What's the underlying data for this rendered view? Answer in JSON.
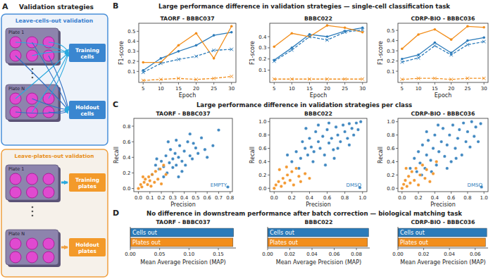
{
  "diagram": {
    "label": "A",
    "title": "Validation strategies",
    "cells_out": {
      "title": "Leave-cells-out validation",
      "plate_1": "Plate 1",
      "plate_n": "Plate N",
      "training": "Training cells",
      "holdout": "Holdout cells"
    },
    "plates_out": {
      "title": "Leave-plates-out validation",
      "plate_1": "Plate 1",
      "plate_n": "Plate N",
      "training": "Training plates",
      "holdout": "Holdout plates"
    }
  },
  "sections": [
    {
      "label": "B",
      "title": "Large performance difference in validation strategies — single-cell classification task"
    },
    {
      "label": "C",
      "title": "Large performance difference in validation strategies per class"
    },
    {
      "label": "D",
      "title": "No difference in downstream performance after batch correction — biological matching task"
    }
  ],
  "chart_data": [
    {
      "type": "line",
      "title": "TAORF - BBBC037",
      "x_label": "Epoch",
      "y_label": "F1-score",
      "x": [
        5,
        10,
        15,
        20,
        25,
        30
      ],
      "xlim": [
        3.75,
        31.25
      ],
      "xticks": [
        5,
        10,
        15,
        20,
        25,
        30
      ],
      "ylim": [
        -0.01,
        0.58
      ],
      "yticks": [
        0.1,
        0.2,
        0.3,
        0.4,
        0.5
      ],
      "series": [
        {
          "color": "#2b7bba",
          "line_style": "solid",
          "marker": "circle",
          "values": [
            0.11,
            0.23,
            0.3,
            0.36,
            0.46,
            0.49
          ]
        },
        {
          "color": "#f28e1c",
          "line_style": "solid",
          "marker": "circle",
          "values": [
            0.19,
            0.19,
            0.36,
            0.48,
            0.23,
            0.55
          ]
        },
        {
          "color": "#2b7bba",
          "line_style": "dashed",
          "marker": "x",
          "values": [
            0.09,
            0.18,
            0.22,
            0.25,
            0.31,
            0.32
          ]
        },
        {
          "color": "#f28e1c",
          "line_style": "dashed",
          "marker": "x",
          "values": [
            0.01,
            0.02,
            0.03,
            0.02,
            0.03,
            0.05
          ]
        }
      ]
    },
    {
      "type": "line",
      "title": "BBBC022",
      "x_label": "Epoch",
      "y_label": "F1-score",
      "x": [
        5,
        10,
        15,
        20,
        25,
        30
      ],
      "xlim": [
        3.75,
        31.25
      ],
      "xticks": [
        5,
        10,
        15,
        20,
        25,
        30
      ],
      "ylim": [
        -0.01,
        0.52
      ],
      "yticks": [
        0.1,
        0.2,
        0.3,
        0.4
      ],
      "series": [
        {
          "color": "#2b7bba",
          "line_style": "solid",
          "marker": "circle",
          "values": [
            0.19,
            0.3,
            0.42,
            0.4,
            0.45,
            0.48
          ]
        },
        {
          "color": "#f28e1c",
          "line_style": "solid",
          "marker": "circle",
          "values": [
            0.31,
            0.43,
            0.4,
            0.5,
            0.48,
            0.44
          ]
        },
        {
          "color": "#2b7bba",
          "line_style": "dashed",
          "marker": "x",
          "values": [
            0.18,
            0.28,
            0.4,
            0.37,
            0.44,
            0.46
          ]
        },
        {
          "color": "#f28e1c",
          "line_style": "dashed",
          "marker": "x",
          "values": [
            0.02,
            0.02,
            0.02,
            0.02,
            0.02,
            0.02
          ]
        }
      ]
    },
    {
      "type": "line",
      "title": "CDRP-BIO - BBBC036",
      "x_label": "Epoch",
      "y_label": "F1-score",
      "x": [
        5,
        10,
        15,
        20,
        25,
        30
      ],
      "xlim": [
        3.75,
        31.25
      ],
      "xticks": [
        5,
        10,
        15,
        20,
        25,
        30
      ],
      "ylim": [
        -0.01,
        0.57
      ],
      "yticks": [
        0.1,
        0.2,
        0.3,
        0.4,
        0.5
      ],
      "series": [
        {
          "color": "#2b7bba",
          "line_style": "solid",
          "marker": "circle",
          "values": [
            0.22,
            0.26,
            0.38,
            0.28,
            0.4,
            0.43
          ]
        },
        {
          "color": "#f28e1c",
          "line_style": "solid",
          "marker": "circle",
          "values": [
            0.32,
            0.46,
            0.51,
            0.41,
            0.54,
            0.53
          ]
        },
        {
          "color": "#2b7bba",
          "line_style": "dashed",
          "marker": "x",
          "values": [
            0.19,
            0.23,
            0.35,
            0.26,
            0.36,
            0.39
          ]
        },
        {
          "color": "#f28e1c",
          "line_style": "dashed",
          "marker": "x",
          "values": [
            0.02,
            0.03,
            0.03,
            0.02,
            0.03,
            0.03
          ]
        }
      ]
    },
    {
      "type": "scatter",
      "title": "TAORF - BBBC037",
      "x_label": "Precision",
      "y_label": "Recall",
      "annotation": "EMPTY",
      "xlim": [
        -0.04,
        0.82
      ],
      "ylim": [
        -0.04,
        0.9
      ],
      "xticks": [
        {
          "value": 0,
          "label": "0.0"
        },
        0.1,
        0.2,
        0.3,
        0.4,
        0.5,
        0.6,
        0.7,
        0.8
      ],
      "yticks": [
        {
          "value": 0,
          "label": "0.0"
        },
        0.2,
        0.4,
        0.6,
        0.8
      ],
      "series": [
        {
          "color": "#2b7bba",
          "x": [
            0.12,
            0.15,
            0.18,
            0.2,
            0.22,
            0.24,
            0.25,
            0.27,
            0.28,
            0.3,
            0.3,
            0.32,
            0.33,
            0.35,
            0.36,
            0.38,
            0.4,
            0.41,
            0.43,
            0.45,
            0.47,
            0.5,
            0.52,
            0.55,
            0.58,
            0.6,
            0.38,
            0.26,
            0.22,
            0.45,
            0.65,
            0.7,
            0.33,
            0.48,
            0.16,
            0.35,
            0.78
          ],
          "values": [
            0.18,
            0.3,
            0.25,
            0.35,
            0.28,
            0.42,
            0.2,
            0.33,
            0.5,
            0.38,
            0.27,
            0.45,
            0.3,
            0.4,
            0.55,
            0.35,
            0.48,
            0.3,
            0.6,
            0.42,
            0.38,
            0.52,
            0.45,
            0.65,
            0.5,
            0.4,
            0.22,
            0.6,
            0.15,
            0.7,
            0.55,
            0.75,
            0.62,
            0.58,
            0.38,
            0.15,
            0.02
          ]
        },
        {
          "color": "#f28e1c",
          "x": [
            0.0,
            0.02,
            0.03,
            0.05,
            0.06,
            0.08,
            0.09,
            0.1,
            0.12,
            0.14,
            0.15,
            0.17,
            0.19,
            0.2,
            0.22,
            0.24,
            0.04,
            0.11
          ],
          "values": [
            0.0,
            0.05,
            0.02,
            0.08,
            0.12,
            0.05,
            0.15,
            0.1,
            0.18,
            0.08,
            0.22,
            0.12,
            0.25,
            0.06,
            0.3,
            0.18,
            0.15,
            0.03
          ]
        }
      ]
    },
    {
      "type": "scatter",
      "title": "BBBC022",
      "x_label": "Precision",
      "y_label": "Recall",
      "annotation": "DMSO",
      "xlim": [
        -0.05,
        1.05
      ],
      "ylim": [
        -0.05,
        1.05
      ],
      "xticks": [
        {
          "value": 0,
          "label": "0.0"
        },
        0.2,
        0.4,
        0.6,
        0.8,
        {
          "value": 1,
          "label": "1.0"
        }
      ],
      "yticks": [
        {
          "value": 0,
          "label": "0.0"
        },
        0.2,
        0.4,
        0.6,
        0.8,
        {
          "value": 1,
          "label": "1.0"
        }
      ],
      "series": [
        {
          "color": "#2b7bba",
          "x": [
            0.2,
            0.25,
            0.3,
            0.32,
            0.35,
            0.38,
            0.4,
            0.42,
            0.45,
            0.47,
            0.5,
            0.52,
            0.55,
            0.57,
            0.6,
            0.62,
            0.65,
            0.67,
            0.7,
            0.72,
            0.75,
            0.78,
            0.8,
            0.83,
            0.85,
            0.88,
            0.9,
            0.93,
            0.95,
            0.98,
            0.28,
            0.44,
            0.58,
            0.68,
            0.15,
            0.36,
            0.5,
            0.62,
            0.72,
            0.85,
            0.97
          ],
          "values": [
            0.4,
            0.55,
            0.45,
            0.7,
            0.6,
            0.5,
            0.75,
            0.62,
            0.55,
            0.85,
            0.7,
            0.6,
            0.78,
            0.5,
            0.88,
            0.68,
            0.75,
            0.58,
            0.92,
            0.8,
            0.7,
            0.95,
            0.85,
            0.75,
            0.97,
            0.9,
            0.8,
            0.98,
            0.88,
            1.0,
            0.3,
            0.4,
            0.35,
            0.45,
            0.5,
            0.9,
            0.95,
            0.98,
            0.6,
            0.65,
            0.01
          ]
        },
        {
          "color": "#f28e1c",
          "x": [
            0.0,
            0.02,
            0.05,
            0.08,
            0.1,
            0.12,
            0.15,
            0.18,
            0.2,
            0.22,
            0.25,
            0.28,
            0.3,
            0.35,
            0.4,
            0.06,
            0.14
          ],
          "values": [
            0.0,
            0.05,
            0.1,
            0.03,
            0.15,
            0.08,
            0.2,
            0.12,
            0.25,
            0.05,
            0.3,
            0.18,
            0.1,
            0.22,
            0.15,
            0.28,
            0.32
          ]
        }
      ]
    },
    {
      "type": "scatter",
      "title": "CDRP-BIO - BBBC036",
      "x_label": "Precision",
      "y_label": "Recall",
      "annotation": "DMSO",
      "xlim": [
        -0.05,
        1.05
      ],
      "ylim": [
        -0.05,
        1.05
      ],
      "xticks": [
        {
          "value": 0,
          "label": "0.0"
        },
        0.2,
        0.4,
        0.6,
        0.8,
        {
          "value": 1,
          "label": "1.0"
        }
      ],
      "yticks": [
        {
          "value": 0,
          "label": "0.0"
        },
        0.2,
        0.4,
        0.6,
        0.8,
        {
          "value": 1,
          "label": "1.0"
        }
      ],
      "series": [
        {
          "color": "#2b7bba",
          "x": [
            0.1,
            0.15,
            0.18,
            0.2,
            0.22,
            0.25,
            0.28,
            0.3,
            0.32,
            0.35,
            0.38,
            0.4,
            0.42,
            0.45,
            0.48,
            0.5,
            0.52,
            0.55,
            0.58,
            0.6,
            0.62,
            0.65,
            0.68,
            0.7,
            0.73,
            0.75,
            0.78,
            0.8,
            0.83,
            0.85,
            0.88,
            0.9,
            0.93,
            0.96,
            0.24,
            0.36,
            0.55,
            0.44,
            0.3,
            0.66,
            0.97
          ],
          "values": [
            0.3,
            0.45,
            0.25,
            0.55,
            0.38,
            0.65,
            0.3,
            0.5,
            0.72,
            0.42,
            0.6,
            0.8,
            0.35,
            0.55,
            0.7,
            0.9,
            0.48,
            0.65,
            0.8,
            0.4,
            0.95,
            0.6,
            0.75,
            0.88,
            0.5,
            0.98,
            0.7,
            0.85,
            0.62,
            1.0,
            0.78,
            0.92,
            0.7,
            0.97,
            0.2,
            0.25,
            0.3,
            0.95,
            0.85,
            0.45,
            0.02
          ]
        },
        {
          "color": "#f28e1c",
          "x": [
            0.0,
            0.02,
            0.04,
            0.06,
            0.08,
            0.1,
            0.12,
            0.15,
            0.17,
            0.2,
            0.22,
            0.25,
            0.28,
            0.3,
            0.34,
            0.38,
            0.05,
            0.42
          ],
          "values": [
            0.0,
            0.06,
            0.12,
            0.03,
            0.18,
            0.08,
            0.25,
            0.12,
            0.3,
            0.05,
            0.2,
            0.35,
            0.15,
            0.28,
            0.1,
            0.22,
            0.3,
            0.4
          ]
        }
      ]
    },
    {
      "type": "bar",
      "orientation": "horizontal",
      "title": "TAORF - BBBC037",
      "x_label": "Mean Average Precision (MAP)",
      "categories": [
        "Cells out",
        "Plates out"
      ],
      "values": [
        0.176,
        0.175
      ],
      "colors": [
        "#2b7bba",
        "#f28e1c"
      ],
      "xlim": [
        0,
        0.18
      ],
      "xticks": [
        {
          "value": 0,
          "label": "0.00"
        },
        {
          "value": 0.05,
          "label": "0.05"
        },
        {
          "value": 0.1,
          "label": "0.10"
        },
        {
          "value": 0.15,
          "label": "0.15"
        }
      ]
    },
    {
      "type": "bar",
      "orientation": "horizontal",
      "title": "BBBC022",
      "x_label": "Mean Average Precision (MAP)",
      "categories": [
        "Cells out",
        "Plates out"
      ],
      "values": [
        0.091,
        0.09
      ],
      "colors": [
        "#2b7bba",
        "#f28e1c"
      ],
      "xlim": [
        0,
        0.092
      ],
      "xticks": [
        {
          "value": 0,
          "label": "0.00"
        },
        {
          "value": 0.02,
          "label": "0.02"
        },
        {
          "value": 0.04,
          "label": "0.04"
        },
        {
          "value": 0.06,
          "label": "0.06"
        },
        {
          "value": 0.08,
          "label": "0.08"
        }
      ]
    },
    {
      "type": "bar",
      "orientation": "horizontal",
      "title": "CDRP-BIO - BBBC036",
      "x_label": "Mean Average Precision (MAP)",
      "categories": [
        "Cells out",
        "Plates out"
      ],
      "values": [
        0.069,
        0.068
      ],
      "colors": [
        "#2b7bba",
        "#f28e1c"
      ],
      "xlim": [
        0,
        0.07
      ],
      "xticks": [
        {
          "value": 0,
          "label": "0.00"
        },
        {
          "value": 0.02,
          "label": "0.02"
        },
        {
          "value": 0.04,
          "label": "0.04"
        },
        {
          "value": 0.06,
          "label": "0.06"
        }
      ]
    }
  ]
}
